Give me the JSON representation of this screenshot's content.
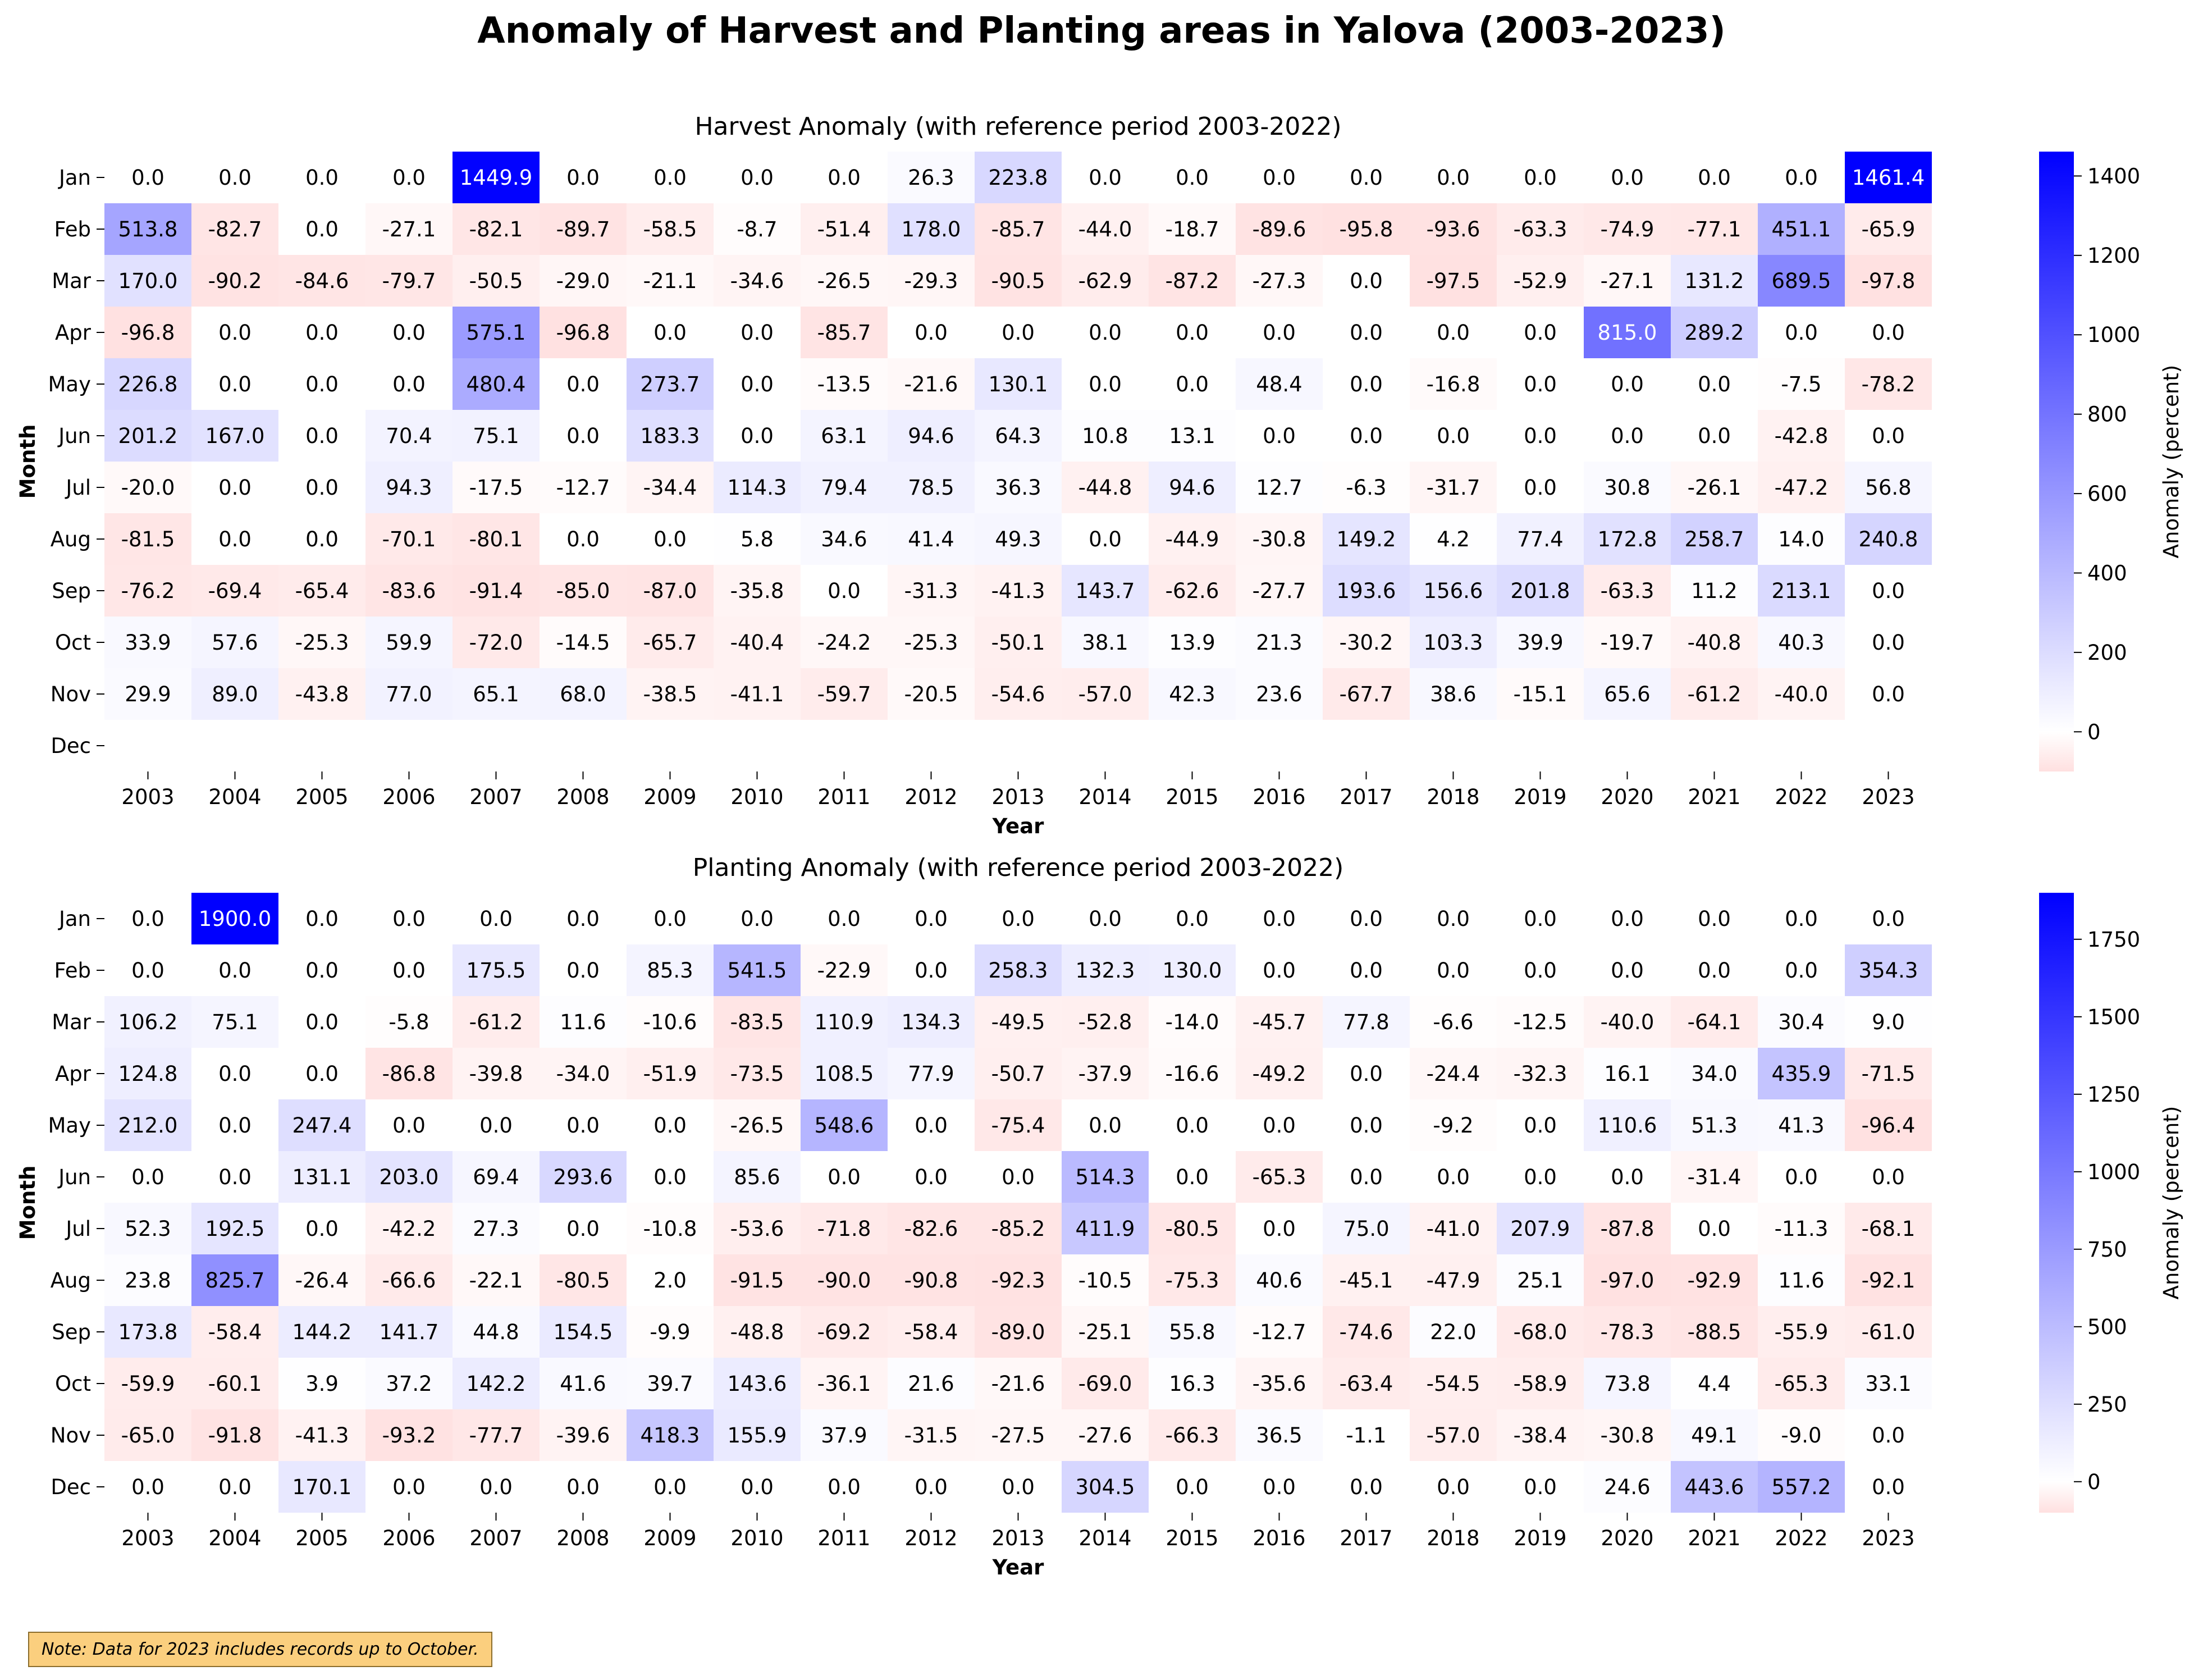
{
  "figure": {
    "title": "Anomaly of Harvest and Planting areas in Yalova (2003-2023)",
    "note": "Note: Data for 2023 includes records up to October."
  },
  "colors": {
    "low": "#ffe0e0",
    "zero": "#ffffff",
    "high": "#0000ff",
    "text_dark": "#000000",
    "text_light": "#ffffff"
  },
  "chart_data": [
    {
      "type": "heatmap",
      "title": "Harvest Anomaly (with reference period 2003-2022)",
      "xlabel": "Year",
      "ylabel": "Month",
      "colorbar_label": "Anomaly (percent)",
      "colorbar_ticks": [
        0,
        200,
        400,
        600,
        800,
        1000,
        1200,
        1400
      ],
      "vmin": -100,
      "vmax": 1461.4,
      "x": [
        "2003",
        "2004",
        "2005",
        "2006",
        "2007",
        "2008",
        "2009",
        "2010",
        "2011",
        "2012",
        "2013",
        "2014",
        "2015",
        "2016",
        "2017",
        "2018",
        "2019",
        "2020",
        "2021",
        "2022",
        "2023"
      ],
      "y": [
        "Jan",
        "Feb",
        "Mar",
        "Apr",
        "May",
        "Jun",
        "Jul",
        "Aug",
        "Sep",
        "Oct",
        "Nov",
        "Dec"
      ],
      "values": [
        [
          0.0,
          0.0,
          0.0,
          0.0,
          1449.9,
          0.0,
          0.0,
          0.0,
          0.0,
          26.3,
          223.8,
          0.0,
          0.0,
          0.0,
          0.0,
          0.0,
          0.0,
          0.0,
          0.0,
          0.0,
          1461.4
        ],
        [
          513.8,
          -82.7,
          0.0,
          -27.1,
          -82.1,
          -89.7,
          -58.5,
          -8.7,
          -51.4,
          178.0,
          -85.7,
          -44.0,
          -18.7,
          -89.6,
          -95.8,
          -93.6,
          -63.3,
          -74.9,
          -77.1,
          451.1,
          -65.9
        ],
        [
          170.0,
          -90.2,
          -84.6,
          -79.7,
          -50.5,
          -29.0,
          -21.1,
          -34.6,
          -26.5,
          -29.3,
          -90.5,
          -62.9,
          -87.2,
          -27.3,
          0.0,
          -97.5,
          -52.9,
          -27.1,
          131.2,
          689.5,
          -97.8
        ],
        [
          -96.8,
          0.0,
          0.0,
          0.0,
          575.1,
          -96.8,
          0.0,
          0.0,
          -85.7,
          0.0,
          0.0,
          0.0,
          0.0,
          0.0,
          0.0,
          0.0,
          0.0,
          815.0,
          289.2,
          0.0,
          0.0
        ],
        [
          226.8,
          0.0,
          0.0,
          0.0,
          480.4,
          0.0,
          273.7,
          0.0,
          -13.5,
          -21.6,
          130.1,
          0.0,
          0.0,
          48.4,
          0.0,
          -16.8,
          0.0,
          0.0,
          0.0,
          -7.5,
          -78.2
        ],
        [
          201.2,
          167.0,
          0.0,
          70.4,
          75.1,
          0.0,
          183.3,
          0.0,
          63.1,
          94.6,
          64.3,
          10.8,
          13.1,
          0.0,
          0.0,
          0.0,
          0.0,
          0.0,
          0.0,
          -42.8,
          0.0
        ],
        [
          -20.0,
          0.0,
          0.0,
          94.3,
          -17.5,
          -12.7,
          -34.4,
          114.3,
          79.4,
          78.5,
          36.3,
          -44.8,
          94.6,
          12.7,
          -6.3,
          -31.7,
          0.0,
          30.8,
          -26.1,
          -47.2,
          56.8
        ],
        [
          -81.5,
          0.0,
          0.0,
          -70.1,
          -80.1,
          0.0,
          0.0,
          5.8,
          34.6,
          41.4,
          49.3,
          0.0,
          -44.9,
          -30.8,
          149.2,
          4.2,
          77.4,
          172.8,
          258.7,
          14.0,
          240.8
        ],
        [
          -76.2,
          -69.4,
          -65.4,
          -83.6,
          -91.4,
          -85.0,
          -87.0,
          -35.8,
          0.0,
          -31.3,
          -41.3,
          143.7,
          -62.6,
          -27.7,
          193.6,
          156.6,
          201.8,
          -63.3,
          11.2,
          213.1,
          0.0
        ],
        [
          33.9,
          57.6,
          -25.3,
          59.9,
          -72.0,
          -14.5,
          -65.7,
          -40.4,
          -24.2,
          -25.3,
          -50.1,
          38.1,
          13.9,
          21.3,
          -30.2,
          103.3,
          39.9,
          -19.7,
          -40.8,
          40.3,
          0.0
        ],
        [
          29.9,
          89.0,
          -43.8,
          77.0,
          65.1,
          68.0,
          -38.5,
          -41.1,
          -59.7,
          -20.5,
          -54.6,
          -57.0,
          42.3,
          23.6,
          -67.7,
          38.6,
          -15.1,
          65.6,
          -61.2,
          -40.0,
          0.0
        ],
        [
          null,
          null,
          null,
          null,
          null,
          null,
          null,
          null,
          null,
          null,
          null,
          null,
          null,
          null,
          null,
          null,
          null,
          null,
          null,
          null,
          null
        ]
      ]
    },
    {
      "type": "heatmap",
      "title": "Planting Anomaly (with reference period 2003-2022)",
      "xlabel": "Year",
      "ylabel": "Month",
      "colorbar_label": "Anomaly (percent)",
      "colorbar_ticks": [
        0,
        250,
        500,
        750,
        1000,
        1250,
        1500,
        1750
      ],
      "vmin": -100,
      "vmax": 1900,
      "x": [
        "2003",
        "2004",
        "2005",
        "2006",
        "2007",
        "2008",
        "2009",
        "2010",
        "2011",
        "2012",
        "2013",
        "2014",
        "2015",
        "2016",
        "2017",
        "2018",
        "2019",
        "2020",
        "2021",
        "2022",
        "2023"
      ],
      "y": [
        "Jan",
        "Feb",
        "Mar",
        "Apr",
        "May",
        "Jun",
        "Jul",
        "Aug",
        "Sep",
        "Oct",
        "Nov",
        "Dec"
      ],
      "values": [
        [
          0.0,
          1900.0,
          0.0,
          0.0,
          0.0,
          0.0,
          0.0,
          0.0,
          0.0,
          0.0,
          0.0,
          0.0,
          0.0,
          0.0,
          0.0,
          0.0,
          0.0,
          0.0,
          0.0,
          0.0,
          0.0
        ],
        [
          0.0,
          0.0,
          0.0,
          0.0,
          175.5,
          0.0,
          85.3,
          541.5,
          -22.9,
          0.0,
          258.3,
          132.3,
          130.0,
          0.0,
          0.0,
          0.0,
          0.0,
          0.0,
          0.0,
          0.0,
          354.3
        ],
        [
          106.2,
          75.1,
          0.0,
          -5.8,
          -61.2,
          11.6,
          -10.6,
          -83.5,
          110.9,
          134.3,
          -49.5,
          -52.8,
          -14.0,
          -45.7,
          77.8,
          -6.6,
          -12.5,
          -40.0,
          -64.1,
          30.4,
          9.0
        ],
        [
          124.8,
          0.0,
          0.0,
          -86.8,
          -39.8,
          -34.0,
          -51.9,
          -73.5,
          108.5,
          77.9,
          -50.7,
          -37.9,
          -16.6,
          -49.2,
          0.0,
          -24.4,
          -32.3,
          16.1,
          34.0,
          435.9,
          -71.5
        ],
        [
          212.0,
          0.0,
          247.4,
          0.0,
          0.0,
          0.0,
          0.0,
          -26.5,
          548.6,
          0.0,
          -75.4,
          0.0,
          0.0,
          0.0,
          0.0,
          -9.2,
          0.0,
          110.6,
          51.3,
          41.3,
          -96.4
        ],
        [
          0.0,
          0.0,
          131.1,
          203.0,
          69.4,
          293.6,
          0.0,
          85.6,
          0.0,
          0.0,
          0.0,
          514.3,
          0.0,
          -65.3,
          0.0,
          0.0,
          0.0,
          0.0,
          -31.4,
          0.0,
          0.0
        ],
        [
          52.3,
          192.5,
          0.0,
          -42.2,
          27.3,
          0.0,
          -10.8,
          -53.6,
          -71.8,
          -82.6,
          -85.2,
          411.9,
          -80.5,
          0.0,
          75.0,
          -41.0,
          207.9,
          -87.8,
          0.0,
          -11.3,
          -68.1
        ],
        [
          23.8,
          825.7,
          -26.4,
          -66.6,
          -22.1,
          -80.5,
          2.0,
          -91.5,
          -90.0,
          -90.8,
          -92.3,
          -10.5,
          -75.3,
          40.6,
          -45.1,
          -47.9,
          25.1,
          -97.0,
          -92.9,
          11.6,
          -92.1
        ],
        [
          173.8,
          -58.4,
          144.2,
          141.7,
          44.8,
          154.5,
          -9.9,
          -48.8,
          -69.2,
          -58.4,
          -89.0,
          -25.1,
          55.8,
          -12.7,
          -74.6,
          22.0,
          -68.0,
          -78.3,
          -88.5,
          -55.9,
          -61.0
        ],
        [
          -59.9,
          -60.1,
          3.9,
          37.2,
          142.2,
          41.6,
          39.7,
          143.6,
          -36.1,
          21.6,
          -21.6,
          -69.0,
          16.3,
          -35.6,
          -63.4,
          -54.5,
          -58.9,
          73.8,
          4.4,
          -65.3,
          33.1
        ],
        [
          -65.0,
          -91.8,
          -41.3,
          -93.2,
          -77.7,
          -39.6,
          418.3,
          155.9,
          37.9,
          -31.5,
          -27.5,
          -27.6,
          -66.3,
          36.5,
          -1.1,
          -57.0,
          -38.4,
          -30.8,
          49.1,
          -9.0,
          0.0
        ],
        [
          0.0,
          0.0,
          170.1,
          0.0,
          0.0,
          0.0,
          0.0,
          0.0,
          0.0,
          0.0,
          0.0,
          304.5,
          0.0,
          0.0,
          0.0,
          0.0,
          0.0,
          24.6,
          443.6,
          557.2,
          0.0
        ]
      ]
    }
  ]
}
